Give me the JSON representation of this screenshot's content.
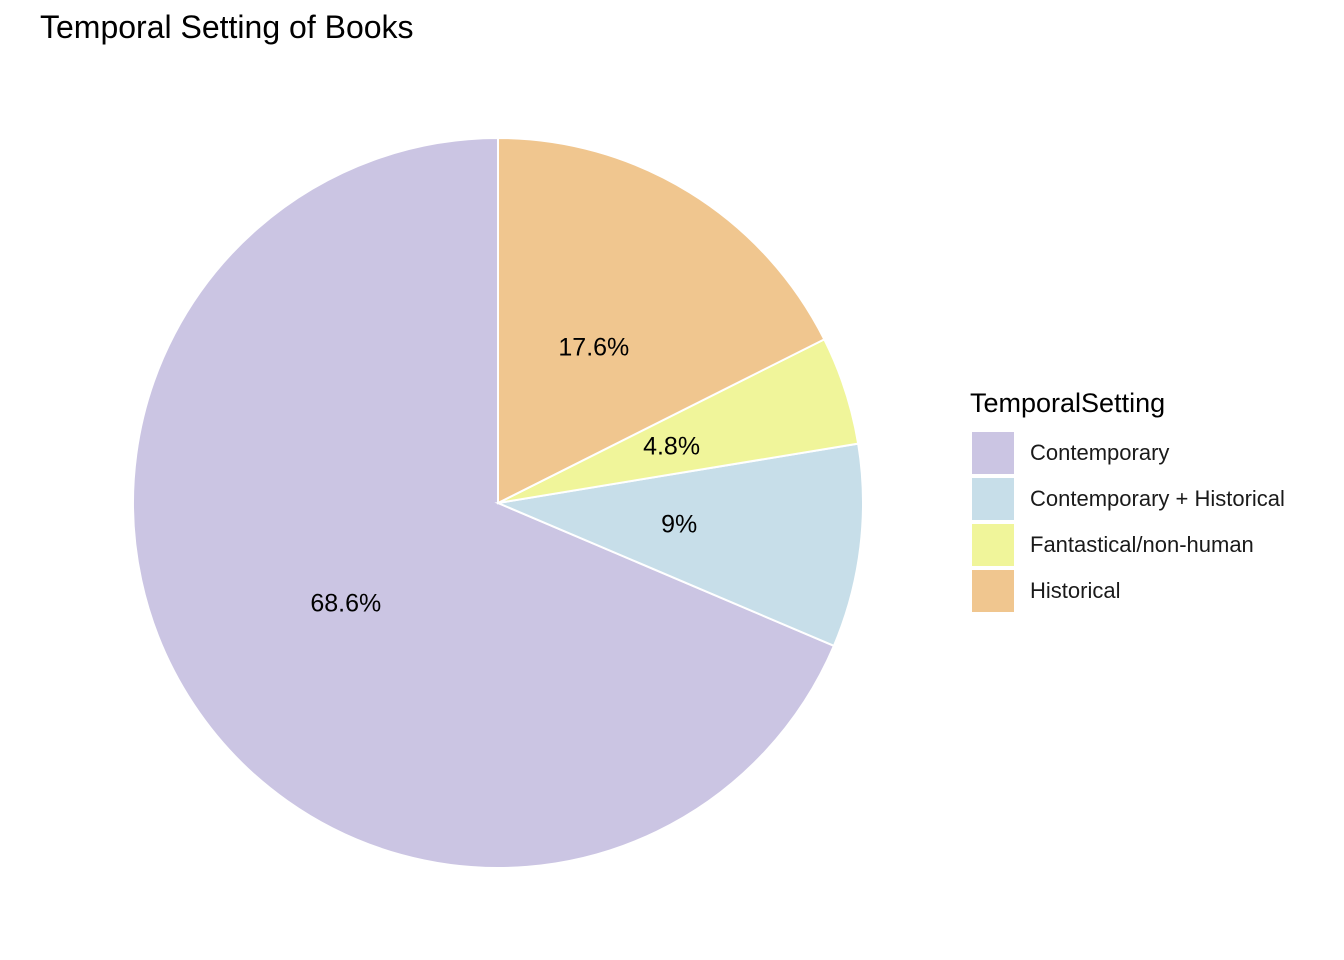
{
  "chart_data": {
    "type": "pie",
    "title": "Temporal Setting of Books",
    "legend_title": "TemporalSetting",
    "legend_position": "right",
    "categories": [
      "Contemporary",
      "Contemporary + Historical",
      "Fantastical/non-human",
      "Historical"
    ],
    "values": [
      68.6,
      9.0,
      4.8,
      17.6
    ],
    "labels": [
      "68.6%",
      "9%",
      "4.8%",
      "17.6%"
    ],
    "colors": [
      "#CBC5E3",
      "#C7DEE9",
      "#F0F59A",
      "#F0C68F"
    ],
    "start_angle_deg": 0,
    "direction": "counterclockwise"
  }
}
